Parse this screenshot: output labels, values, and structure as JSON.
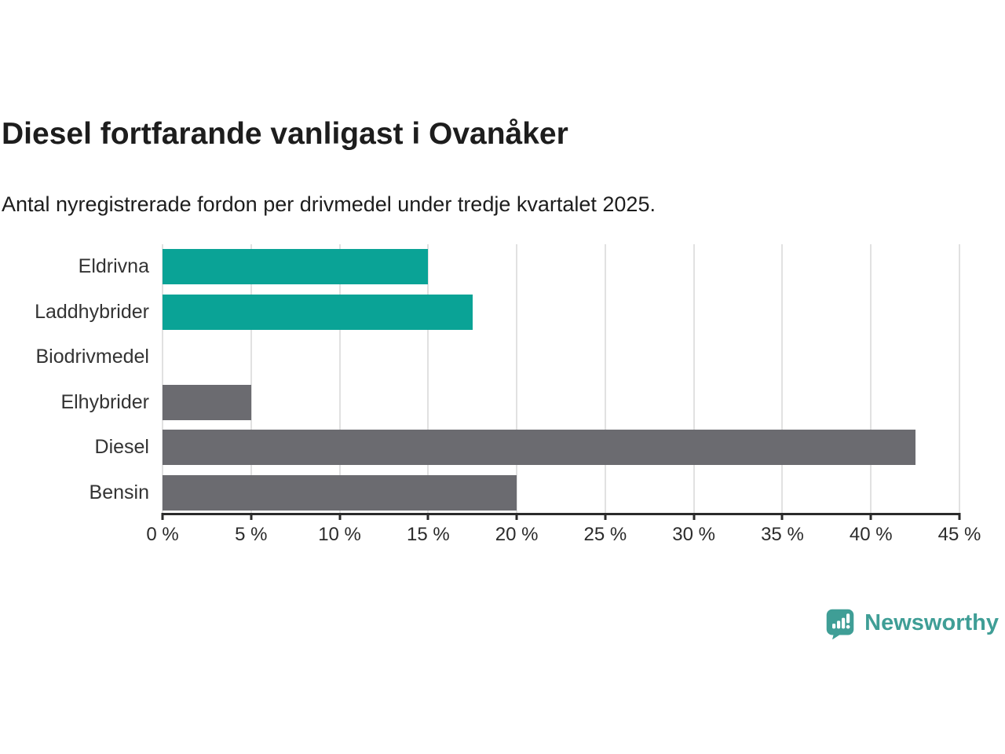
{
  "header": {
    "title": "Diesel fortfarande vanligast i Ovanåker",
    "subtitle": "Antal nyregistrerade fordon per drivmedel under tredje kvartalet 2025."
  },
  "chart_data": {
    "type": "bar",
    "orientation": "horizontal",
    "title": "Diesel fortfarande vanligast i Ovanåker",
    "subtitle": "Antal nyregistrerade fordon per drivmedel under tredje kvartalet 2025.",
    "categories": [
      "Eldrivna",
      "Laddhybrider",
      "Biodrivmedel",
      "Elhybrider",
      "Diesel",
      "Bensin"
    ],
    "values": [
      15,
      17.5,
      0,
      5,
      42.5,
      20
    ],
    "unit": "%",
    "bar_colors": [
      "#0AA396",
      "#0AA396",
      "#6B6B70",
      "#6B6B70",
      "#6B6B70",
      "#6B6B70"
    ],
    "xlim": [
      0,
      45
    ],
    "x_ticks": [
      0,
      5,
      10,
      15,
      20,
      25,
      30,
      35,
      40,
      45
    ],
    "x_tick_labels": [
      "0 %",
      "5 %",
      "10 %",
      "15 %",
      "20 %",
      "25 %",
      "30 %",
      "35 %",
      "40 %",
      "45 %"
    ],
    "grid": "vertical",
    "legend": "none"
  },
  "footer": {
    "brand": "Newsworthy"
  },
  "colors": {
    "bar_teal": "#0AA396",
    "bar_gray": "#6B6B70",
    "axis": "#2B2B2B",
    "gridline": "#E1E1E1",
    "title_text": "#1D1D1D",
    "category_text": "#333333",
    "brand_teal": "#3F9E96"
  }
}
